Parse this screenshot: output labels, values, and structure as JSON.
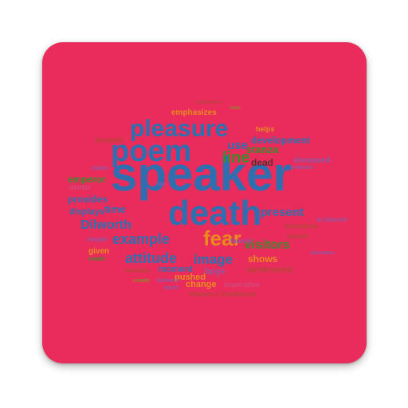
{
  "tile": {
    "color": "#ea2c5c"
  },
  "palette": {
    "blue": "#2f6fb0",
    "green": "#3e8a2c",
    "orange": "#e98a1f",
    "purple": "#8a5aa8",
    "olive": "#8a8a2a",
    "dark_red": "#b5473a",
    "lavender": "#a98bc8",
    "pink": "#d14a7a"
  },
  "words": [
    "speaker",
    "death",
    "poem",
    "pleasure",
    "fear",
    "example",
    "attitude",
    "image",
    "Dilworth",
    "visitors",
    "line",
    "present",
    "use",
    "development",
    "stanza",
    "dead",
    "time",
    "provides",
    "displays",
    "emperor",
    "shows",
    "sentences",
    "change",
    "moment",
    "pushed",
    "boys",
    "given",
    "emphasizes",
    "located",
    "deceased",
    "wenches",
    "sexual",
    "helps",
    "funeral",
    "imperative",
    "Heaven Considered",
    "As Dilworth",
    "dental",
    "claims",
    "contrast",
    "furthermore",
    "attendants",
    "emotion",
    "role",
    "tone",
    "simple",
    "starts",
    "believes",
    "reader",
    "create"
  ]
}
